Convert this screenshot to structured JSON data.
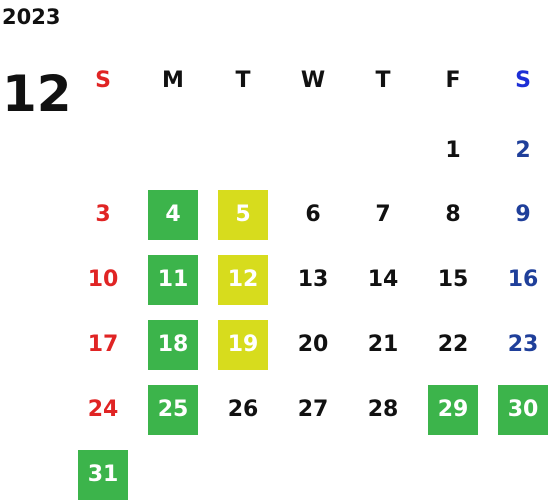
{
  "year": "2023",
  "month": "12",
  "weekdays": [
    "S",
    "M",
    "T",
    "W",
    "T",
    "F",
    "S"
  ],
  "colors": {
    "sunday": "#e02424",
    "saturday": "#1f3f9a",
    "weekday": "#111111",
    "green_highlight": "#3cb44b",
    "yellow_highlight": "#d7dc1d",
    "highlight_text": "#ffffff",
    "sunday_header": "#e02424",
    "saturday_header": "#1d2fd6"
  },
  "start_weekday": 5,
  "days": [
    {
      "d": "1",
      "hl": null
    },
    {
      "d": "2",
      "hl": null
    },
    {
      "d": "3",
      "hl": null
    },
    {
      "d": "4",
      "hl": "green"
    },
    {
      "d": "5",
      "hl": "yellow"
    },
    {
      "d": "6",
      "hl": null
    },
    {
      "d": "7",
      "hl": null
    },
    {
      "d": "8",
      "hl": null
    },
    {
      "d": "9",
      "hl": null
    },
    {
      "d": "10",
      "hl": null
    },
    {
      "d": "11",
      "hl": "green"
    },
    {
      "d": "12",
      "hl": "yellow"
    },
    {
      "d": "13",
      "hl": null
    },
    {
      "d": "14",
      "hl": null
    },
    {
      "d": "15",
      "hl": null
    },
    {
      "d": "16",
      "hl": null
    },
    {
      "d": "17",
      "hl": null
    },
    {
      "d": "18",
      "hl": "green"
    },
    {
      "d": "19",
      "hl": "yellow"
    },
    {
      "d": "20",
      "hl": null
    },
    {
      "d": "21",
      "hl": null
    },
    {
      "d": "22",
      "hl": null
    },
    {
      "d": "23",
      "hl": null
    },
    {
      "d": "24",
      "hl": null
    },
    {
      "d": "25",
      "hl": "green"
    },
    {
      "d": "26",
      "hl": null
    },
    {
      "d": "27",
      "hl": null
    },
    {
      "d": "28",
      "hl": null
    },
    {
      "d": "29",
      "hl": "green"
    },
    {
      "d": "30",
      "hl": "green"
    },
    {
      "d": "31",
      "hl": "green"
    }
  ]
}
